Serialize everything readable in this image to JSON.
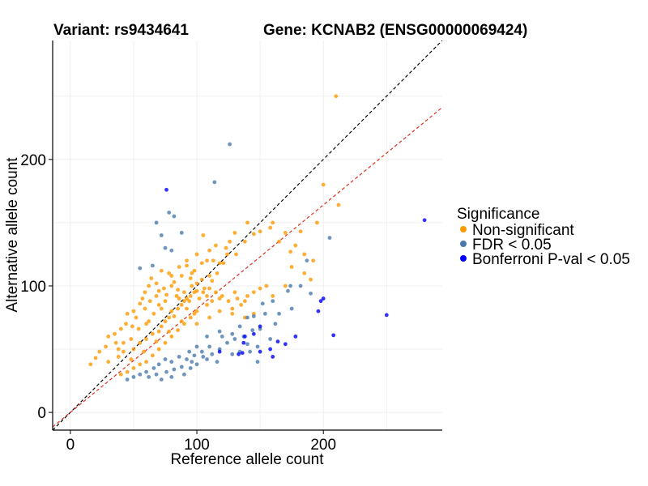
{
  "title_left": "Variant: rs9434641",
  "title_right": "Gene: KCNAB2 (ENSG00000069424)",
  "chart_data": {
    "type": "scatter",
    "xlabel": "Reference allele count",
    "ylabel": "Alternative allele count",
    "xlim": [
      -14,
      294
    ],
    "ylim": [
      -14,
      294
    ],
    "x_ticks": [
      0,
      100,
      200
    ],
    "y_ticks": [
      0,
      100,
      200
    ],
    "grid": true,
    "legend_placement": "right",
    "legend": {
      "title": "Significance",
      "entries": [
        {
          "label": "Non-significant",
          "color": "#FF9900"
        },
        {
          "label": "FDR < 0.05",
          "color": "#4A7AAD"
        },
        {
          "label": "Bonferroni P-val < 0.05",
          "color": "#0000FF"
        }
      ]
    },
    "reference_lines": [
      {
        "type": "identity",
        "slope": 1.0,
        "intercept": 0,
        "color": "#000000",
        "style": "dashed"
      },
      {
        "type": "fit",
        "slope": 0.82,
        "intercept": 0,
        "color": "#E03020",
        "style": "dashed"
      }
    ],
    "series": [
      {
        "name": "Non-significant",
        "color": "#FF9900",
        "points": [
          [
            210,
            250
          ],
          [
            200,
            180
          ],
          [
            212,
            164
          ],
          [
            195,
            150
          ],
          [
            182,
            143
          ],
          [
            170,
            142
          ],
          [
            158,
            146
          ],
          [
            160,
            150
          ],
          [
            150,
            143
          ],
          [
            165,
            135
          ],
          [
            174,
            127
          ],
          [
            145,
            141
          ],
          [
            140,
            150
          ],
          [
            138,
            135
          ],
          [
            130,
            142
          ],
          [
            126,
            135
          ],
          [
            123,
            130
          ],
          [
            131,
            125
          ],
          [
            124,
            125
          ],
          [
            118,
            118
          ],
          [
            121,
            118
          ],
          [
            113,
            120
          ],
          [
            108,
            120
          ],
          [
            104,
            118
          ],
          [
            98,
            112
          ],
          [
            96,
            110
          ],
          [
            92,
            116
          ],
          [
            95,
            106
          ],
          [
            88,
            108
          ],
          [
            80,
            108
          ],
          [
            82,
            103
          ],
          [
            78,
            110
          ],
          [
            85,
            97
          ],
          [
            80,
            100
          ],
          [
            76,
            93
          ],
          [
            70,
            96
          ],
          [
            68,
            92
          ],
          [
            62,
            100
          ],
          [
            59,
            95
          ],
          [
            63,
            88
          ],
          [
            57,
            90
          ],
          [
            55,
            86
          ],
          [
            59,
            82
          ],
          [
            50,
            80
          ],
          [
            45,
            78
          ],
          [
            52,
            75
          ],
          [
            60,
            70
          ],
          [
            49,
            68
          ],
          [
            44,
            70
          ],
          [
            40,
            66
          ],
          [
            35,
            62
          ],
          [
            30,
            60
          ],
          [
            36,
            55
          ],
          [
            28,
            52
          ],
          [
            23,
            48
          ],
          [
            20,
            43
          ],
          [
            16,
            38
          ],
          [
            30,
            40
          ],
          [
            38,
            44
          ],
          [
            42,
            48
          ],
          [
            50,
            50
          ],
          [
            55,
            55
          ],
          [
            60,
            58
          ],
          [
            65,
            62
          ],
          [
            70,
            64
          ],
          [
            72,
            68
          ],
          [
            75,
            72
          ],
          [
            78,
            75
          ],
          [
            80,
            80
          ],
          [
            85,
            82
          ],
          [
            88,
            85
          ],
          [
            90,
            88
          ],
          [
            92,
            90
          ],
          [
            95,
            92
          ],
          [
            98,
            95
          ],
          [
            100,
            96
          ],
          [
            102,
            90
          ],
          [
            105,
            95
          ],
          [
            108,
            92
          ],
          [
            110,
            98
          ],
          [
            112,
            88
          ],
          [
            115,
            95
          ],
          [
            118,
            90
          ],
          [
            120,
            92
          ],
          [
            125,
            88
          ],
          [
            128,
            82
          ],
          [
            130,
            95
          ],
          [
            132,
            90
          ],
          [
            135,
            85
          ],
          [
            138,
            88
          ],
          [
            140,
            92
          ],
          [
            145,
            95
          ],
          [
            150,
            98
          ],
          [
            155,
            100
          ],
          [
            160,
            92
          ],
          [
            170,
            100
          ],
          [
            175,
            115
          ],
          [
            185,
            110
          ],
          [
            190,
            105
          ],
          [
            192,
            120
          ],
          [
            185,
            125
          ],
          [
            178,
            132
          ],
          [
            100,
            80
          ],
          [
            95,
            75
          ],
          [
            90,
            70
          ],
          [
            85,
            65
          ],
          [
            80,
            60
          ],
          [
            75,
            55
          ],
          [
            70,
            50
          ],
          [
            65,
            45
          ],
          [
            60,
            40
          ],
          [
            55,
            38
          ],
          [
            50,
            35
          ],
          [
            45,
            32
          ],
          [
            40,
            30
          ],
          [
            48,
            42
          ],
          [
            58,
            48
          ],
          [
            68,
            56
          ],
          [
            78,
            64
          ],
          [
            88,
            72
          ],
          [
            98,
            78
          ],
          [
            108,
            85
          ],
          [
            118,
            80
          ],
          [
            128,
            78
          ],
          [
            138,
            75
          ],
          [
            145,
            78
          ],
          [
            100,
            70
          ],
          [
            110,
            75
          ],
          [
            92,
            82
          ],
          [
            82,
            76
          ],
          [
            72,
            82
          ],
          [
            66,
            78
          ],
          [
            62,
            72
          ],
          [
            54,
            66
          ],
          [
            48,
            58
          ],
          [
            42,
            55
          ],
          [
            38,
            50
          ],
          [
            70,
            85
          ],
          [
            75,
            88
          ],
          [
            86,
            90
          ],
          [
            90,
            95
          ],
          [
            96,
            100
          ],
          [
            104,
            105
          ],
          [
            110,
            108
          ],
          [
            116,
            110
          ],
          [
            112,
            104
          ],
          [
            106,
            98
          ],
          [
            100,
            102
          ],
          [
            94,
            88
          ],
          [
            84,
            92
          ],
          [
            74,
            98
          ],
          [
            68,
            102
          ],
          [
            64,
            106
          ],
          [
            72,
            112
          ],
          [
            86,
            115
          ],
          [
            92,
            120
          ],
          [
            100,
            125
          ],
          [
            110,
            128
          ],
          [
            115,
            132
          ],
          [
            105,
            140
          ]
        ]
      },
      {
        "name": "FDR < 0.05",
        "color": "#4A7AAD",
        "points": [
          [
            126,
            212
          ],
          [
            114,
            182
          ],
          [
            68,
            150
          ],
          [
            78,
            158
          ],
          [
            82,
            155
          ],
          [
            88,
            142
          ],
          [
            72,
            140
          ],
          [
            75,
            130
          ],
          [
            80,
            128
          ],
          [
            55,
            114
          ],
          [
            65,
            116
          ],
          [
            205,
            138
          ],
          [
            187,
            120
          ],
          [
            182,
            100
          ],
          [
            174,
            100
          ],
          [
            190,
            94
          ],
          [
            172,
            96
          ],
          [
            160,
            88
          ],
          [
            152,
            86
          ],
          [
            154,
            78
          ],
          [
            165,
            78
          ],
          [
            145,
            76
          ],
          [
            140,
            75
          ],
          [
            162,
            70
          ],
          [
            150,
            66
          ],
          [
            144,
            65
          ],
          [
            137,
            60
          ],
          [
            158,
            58
          ],
          [
            130,
            58
          ],
          [
            124,
            55
          ],
          [
            118,
            50
          ],
          [
            110,
            52
          ],
          [
            104,
            48
          ],
          [
            98,
            45
          ],
          [
            92,
            42
          ],
          [
            86,
            44
          ],
          [
            80,
            40
          ],
          [
            75,
            42
          ],
          [
            70,
            38
          ],
          [
            66,
            35
          ],
          [
            60,
            32
          ],
          [
            55,
            30
          ],
          [
            50,
            28
          ],
          [
            45,
            26
          ],
          [
            62,
            28
          ],
          [
            72,
            26
          ],
          [
            80,
            28
          ],
          [
            90,
            30
          ],
          [
            95,
            35
          ],
          [
            100,
            38
          ],
          [
            105,
            44
          ],
          [
            112,
            46
          ],
          [
            120,
            60
          ],
          [
            128,
            62
          ],
          [
            134,
            68
          ],
          [
            128,
            46
          ],
          [
            116,
            40
          ],
          [
            108,
            42
          ],
          [
            94,
            48
          ],
          [
            88,
            36
          ],
          [
            82,
            34
          ],
          [
            76,
            32
          ],
          [
            68,
            30
          ],
          [
            134,
            48
          ],
          [
            140,
            54
          ],
          [
            175,
            82
          ],
          [
            142,
            48
          ],
          [
            148,
            52
          ],
          [
            108,
            60
          ],
          [
            118,
            64
          ],
          [
            100,
            52
          ],
          [
            96,
            40
          ],
          [
            148,
            40
          ]
        ]
      },
      {
        "name": "Bonferroni P-val < 0.05",
        "color": "#0000FF",
        "points": [
          [
            76,
            176
          ],
          [
            280,
            152
          ],
          [
            200,
            90
          ],
          [
            198,
            88
          ],
          [
            196,
            80
          ],
          [
            250,
            77
          ],
          [
            164,
            56
          ],
          [
            150,
            68
          ],
          [
            145,
            62
          ],
          [
            208,
            61
          ],
          [
            178,
            60
          ],
          [
            170,
            54
          ],
          [
            158,
            50
          ],
          [
            138,
            60
          ],
          [
            150,
            48
          ],
          [
            137,
            55
          ],
          [
            136,
            47
          ],
          [
            160,
            44
          ],
          [
            118,
            48
          ],
          [
            133,
            46
          ]
        ]
      }
    ]
  }
}
